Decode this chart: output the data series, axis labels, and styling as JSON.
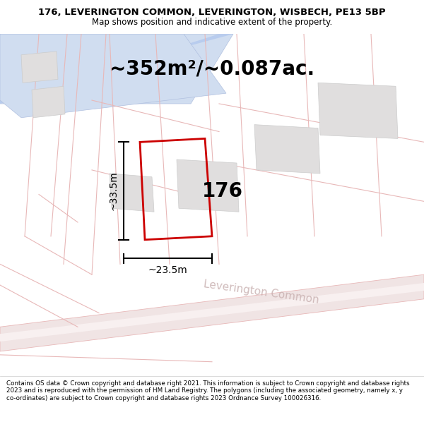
{
  "title_line1": "176, LEVERINGTON COMMON, LEVERINGTON, WISBECH, PE13 5BP",
  "title_line2": "Map shows position and indicative extent of the property.",
  "area_text": "~352m²/~0.087ac.",
  "label_176": "176",
  "dim_vertical": "~33.5m",
  "dim_horizontal": "~23.5m",
  "street_label": "Leverington Common",
  "footer_text": "Contains OS data © Crown copyright and database right 2021. This information is subject to Crown copyright and database rights 2023 and is reproduced with the permission of HM Land Registry. The polygons (including the associated geometry, namely x, y co-ordinates) are subject to Crown copyright and database rights 2023 Ordnance Survey 100026316.",
  "map_bg": "#f9f6f6",
  "plot_outline_color": "#cc0000",
  "text_color": "#000000",
  "header_bg": "#ffffff",
  "footer_bg": "#ffffff",
  "road_pink_light": "#f5e8e8",
  "road_edge_pink": "#e8b8b8",
  "building_fill": "#e0dede",
  "building_edge": "#cccccc",
  "blue_fill": "#d0ddf0",
  "blue_edge": "#b0c0e0",
  "street_text_color": "#c8b0b0"
}
